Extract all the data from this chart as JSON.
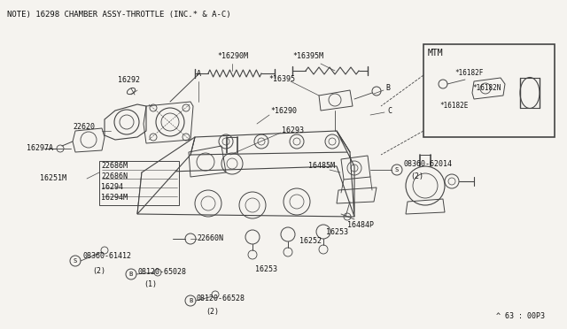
{
  "bg_color": "#f5f3ef",
  "line_color": "#444444",
  "text_color": "#111111",
  "note_text": "NOTE) 16298 CHAMBER ASSY-THROTTLE (INC.★ & A-C)",
  "footer_text": "▲ 63 : 00P3",
  "mtm_box_label": "MTM",
  "figsize": [
    6.4,
    3.72
  ],
  "dpi": 100
}
